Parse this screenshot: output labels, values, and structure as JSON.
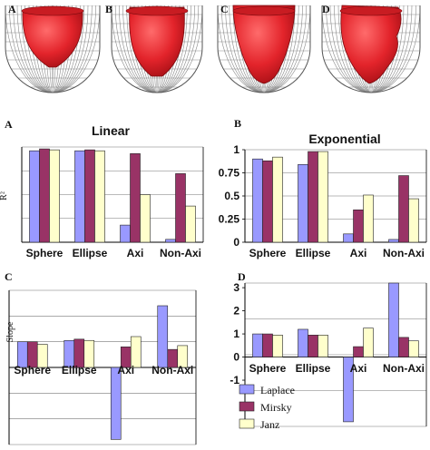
{
  "panel_labels": [
    "A",
    "B",
    "C",
    "D"
  ],
  "heart_models": [
    {
      "label": "A",
      "shape": "sphere"
    },
    {
      "label": "B",
      "shape": "ellipsoid"
    },
    {
      "label": "C",
      "shape": "axisymmetric"
    },
    {
      "label": "D",
      "shape": "non-axisymmetric"
    }
  ],
  "legend": {
    "entries": [
      {
        "name": "Laplace",
        "color": "#9999ff"
      },
      {
        "name": "Mirsky",
        "color": "#993366"
      },
      {
        "name": "Janz",
        "color": "#ffffcc"
      }
    ]
  },
  "colors": {
    "laplace": "#9999ff",
    "mirsky": "#993366",
    "janz": "#ffffcc",
    "axis": "#000000",
    "bar_stroke": "#222222",
    "grid": "#777777"
  },
  "chart_data": [
    {
      "panel": "A",
      "type": "bar",
      "title": "Linear",
      "ylabel": "R²",
      "categories": [
        "Sphere",
        "Ellipse",
        "Axi",
        "Non-Axi"
      ],
      "ylim": [
        0,
        1
      ],
      "yticks": [],
      "grid": true,
      "series": [
        {
          "name": "Laplace",
          "values": [
            0.96,
            0.96,
            0.18,
            0.03
          ]
        },
        {
          "name": "Mirsky",
          "values": [
            0.98,
            0.97,
            0.93,
            0.72
          ]
        },
        {
          "name": "Janz",
          "values": [
            0.97,
            0.96,
            0.5,
            0.38
          ]
        }
      ]
    },
    {
      "panel": "B",
      "type": "bar",
      "title": "Exponential",
      "ylabel": "",
      "categories": [
        "Sphere",
        "Ellipse",
        "Axi",
        "Non-Axi"
      ],
      "ylim": [
        0,
        1
      ],
      "yticks": [
        "0",
        "0.25",
        "0.5",
        "0.75",
        "1"
      ],
      "grid": true,
      "series": [
        {
          "name": "Laplace",
          "values": [
            0.9,
            0.84,
            0.09,
            0.03
          ]
        },
        {
          "name": "Mirsky",
          "values": [
            0.88,
            0.98,
            0.35,
            0.72
          ]
        },
        {
          "name": "Janz",
          "values": [
            0.92,
            0.98,
            0.51,
            0.47
          ]
        }
      ]
    },
    {
      "panel": "C",
      "type": "bar",
      "title": "",
      "ylabel": "Slope",
      "categories": [
        "Sphere",
        "Ellipse",
        "Axi",
        "Non-Axi"
      ],
      "ylim": [
        -3,
        3
      ],
      "yticks": [],
      "grid": true,
      "series": [
        {
          "name": "Laplace",
          "values": [
            1.0,
            1.05,
            -2.8,
            2.4
          ]
        },
        {
          "name": "Mirsky",
          "values": [
            1.0,
            1.1,
            0.8,
            0.7
          ]
        },
        {
          "name": "Janz",
          "values": [
            0.9,
            1.05,
            1.2,
            0.85
          ]
        }
      ]
    },
    {
      "panel": "D",
      "type": "bar",
      "title": "",
      "ylabel": "",
      "categories": [
        "Sphere",
        "Ellipse",
        "Axi",
        "Non-Axi"
      ],
      "ylim": [
        -3,
        3.2
      ],
      "yticks": [
        "-1",
        "0",
        "1",
        "2",
        "3"
      ],
      "grid": true,
      "series": [
        {
          "name": "Laplace",
          "values": [
            1.0,
            1.2,
            -2.8,
            3.2
          ]
        },
        {
          "name": "Mirsky",
          "values": [
            1.0,
            0.95,
            0.45,
            0.85
          ]
        },
        {
          "name": "Janz",
          "values": [
            0.95,
            0.95,
            1.25,
            0.7
          ]
        }
      ]
    }
  ]
}
